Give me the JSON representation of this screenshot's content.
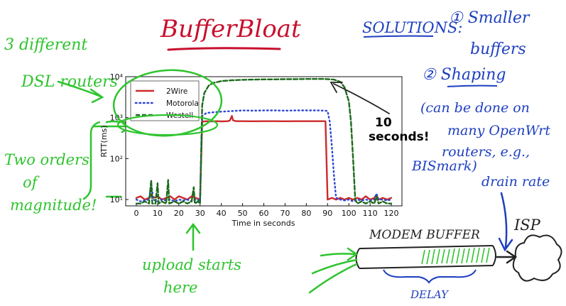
{
  "slide": {
    "title": "BufferBloat",
    "solutions_heading": "SOLUTIONS:",
    "solution_1": [
      "① Smaller",
      "buffers"
    ],
    "solution_2": [
      "② Shaping",
      "(can be done on",
      "many OpenWrt",
      "routers, e.g.,",
      "BISmark)",
      "drain rate"
    ],
    "note_routers": [
      "3 different",
      "DSL routers"
    ],
    "note_orders": [
      "Two orders",
      "of",
      "magnitude!"
    ],
    "note_upload": [
      "upload starts",
      "here"
    ],
    "callout": [
      "10",
      "seconds!"
    ],
    "modem": {
      "label": "MODEM BUFFER",
      "isp": "ISP",
      "delay": "DELAY"
    },
    "colors": {
      "red_ink": "#c8102e",
      "blue_ink": "#1e3fc0",
      "green_ink": "#2ec42e"
    }
  },
  "chart_data": {
    "type": "line",
    "xlabel": "Time in seconds",
    "ylabel": "RTT(ms)",
    "xlim": [
      -5,
      125
    ],
    "ylim": [
      7,
      10000
    ],
    "yscale": "log",
    "xticks": [
      0,
      10,
      20,
      30,
      40,
      50,
      60,
      70,
      80,
      90,
      100,
      110,
      120
    ],
    "yticks": [
      "10¹",
      "10²",
      "10³",
      "10⁴"
    ],
    "ytick_values": [
      10,
      100,
      1000,
      10000
    ],
    "grid": false,
    "legend_position": "top-left",
    "series": [
      {
        "name": "2Wire",
        "color": "#cc2a2a",
        "style": "solid",
        "points": [
          [
            0,
            11
          ],
          [
            2,
            12
          ],
          [
            4,
            10
          ],
          [
            6,
            11
          ],
          [
            7,
            13
          ],
          [
            8,
            11
          ],
          [
            10,
            12
          ],
          [
            12,
            10
          ],
          [
            14,
            11
          ],
          [
            16,
            12
          ],
          [
            18,
            10
          ],
          [
            20,
            12
          ],
          [
            22,
            11
          ],
          [
            24,
            10
          ],
          [
            26,
            12
          ],
          [
            28,
            11
          ],
          [
            30,
            10
          ],
          [
            31,
            800
          ],
          [
            33,
            820
          ],
          [
            35,
            810
          ],
          [
            38,
            820
          ],
          [
            40,
            810
          ],
          [
            43,
            820
          ],
          [
            44,
            850
          ],
          [
            45,
            1100
          ],
          [
            45.5,
            860
          ],
          [
            47,
            820
          ],
          [
            50,
            820
          ],
          [
            55,
            815
          ],
          [
            60,
            820
          ],
          [
            65,
            820
          ],
          [
            70,
            815
          ],
          [
            75,
            820
          ],
          [
            80,
            820
          ],
          [
            85,
            820
          ],
          [
            88,
            820
          ],
          [
            89,
            815
          ],
          [
            90,
            10
          ],
          [
            92,
            11
          ],
          [
            94,
            10
          ],
          [
            96,
            11
          ],
          [
            98,
            10
          ],
          [
            100,
            11
          ],
          [
            102,
            10
          ],
          [
            104,
            11
          ],
          [
            106,
            10
          ],
          [
            108,
            12
          ],
          [
            110,
            10
          ],
          [
            112,
            11
          ],
          [
            113,
            13
          ],
          [
            114,
            10
          ],
          [
            116,
            11
          ],
          [
            118,
            10
          ],
          [
            120,
            11
          ]
        ]
      },
      {
        "name": "Motorola",
        "color": "#2b44d8",
        "style": "dotted",
        "points": [
          [
            0,
            10
          ],
          [
            2,
            9
          ],
          [
            4,
            9.5
          ],
          [
            6,
            10
          ],
          [
            7,
            25
          ],
          [
            8,
            10
          ],
          [
            10,
            9
          ],
          [
            12,
            10
          ],
          [
            14,
            9.5
          ],
          [
            16,
            10
          ],
          [
            18,
            9
          ],
          [
            20,
            10
          ],
          [
            22,
            9.5
          ],
          [
            24,
            10
          ],
          [
            26,
            9
          ],
          [
            28,
            10
          ],
          [
            30,
            9.5
          ],
          [
            31,
            1100
          ],
          [
            33,
            1300
          ],
          [
            36,
            1350
          ],
          [
            40,
            1400
          ],
          [
            45,
            1450
          ],
          [
            50,
            1500
          ],
          [
            55,
            1480
          ],
          [
            60,
            1500
          ],
          [
            65,
            1500
          ],
          [
            70,
            1480
          ],
          [
            75,
            1500
          ],
          [
            80,
            1500
          ],
          [
            85,
            1500
          ],
          [
            89,
            1480
          ],
          [
            90,
            1450
          ],
          [
            91,
            800
          ],
          [
            92,
            200
          ],
          [
            93,
            40
          ],
          [
            94,
            11
          ],
          [
            96,
            10
          ],
          [
            98,
            9.5
          ],
          [
            100,
            10
          ],
          [
            102,
            9
          ],
          [
            104,
            10
          ],
          [
            106,
            9.5
          ],
          [
            108,
            10
          ],
          [
            110,
            9.5
          ],
          [
            112,
            10
          ],
          [
            113,
            14
          ],
          [
            114,
            10
          ],
          [
            116,
            10
          ],
          [
            118,
            9.5
          ],
          [
            120,
            10
          ]
        ]
      },
      {
        "name": "Westell",
        "color": "#1c6b1c",
        "style": "dashed",
        "points": [
          [
            0,
            8
          ],
          [
            2,
            8
          ],
          [
            4,
            9
          ],
          [
            6,
            8
          ],
          [
            7,
            30
          ],
          [
            7.5,
            8
          ],
          [
            9,
            8
          ],
          [
            10,
            25
          ],
          [
            10.5,
            8
          ],
          [
            12,
            9
          ],
          [
            14,
            8
          ],
          [
            15,
            30
          ],
          [
            15.5,
            8
          ],
          [
            18,
            9
          ],
          [
            20,
            8
          ],
          [
            22,
            9
          ],
          [
            24,
            8
          ],
          [
            26,
            9
          ],
          [
            27,
            20
          ],
          [
            27.5,
            8
          ],
          [
            29,
            9
          ],
          [
            30,
            8
          ],
          [
            31,
            2000
          ],
          [
            32,
            4000
          ],
          [
            34,
            6000
          ],
          [
            36,
            7000
          ],
          [
            40,
            7800
          ],
          [
            45,
            8200
          ],
          [
            50,
            8400
          ],
          [
            55,
            8500
          ],
          [
            60,
            8600
          ],
          [
            65,
            8600
          ],
          [
            70,
            8700
          ],
          [
            75,
            8700
          ],
          [
            80,
            8800
          ],
          [
            85,
            8800
          ],
          [
            88,
            8800
          ],
          [
            90,
            8700
          ],
          [
            93,
            8500
          ],
          [
            96,
            7500
          ],
          [
            98,
            5500
          ],
          [
            100,
            2500
          ],
          [
            101,
            800
          ],
          [
            102,
            100
          ],
          [
            103,
            10
          ],
          [
            104,
            8
          ],
          [
            106,
            9
          ],
          [
            108,
            8
          ],
          [
            110,
            9
          ],
          [
            112,
            8
          ],
          [
            113,
            12
          ],
          [
            114,
            8
          ],
          [
            116,
            9
          ],
          [
            118,
            8
          ],
          [
            120,
            8
          ]
        ]
      }
    ]
  }
}
